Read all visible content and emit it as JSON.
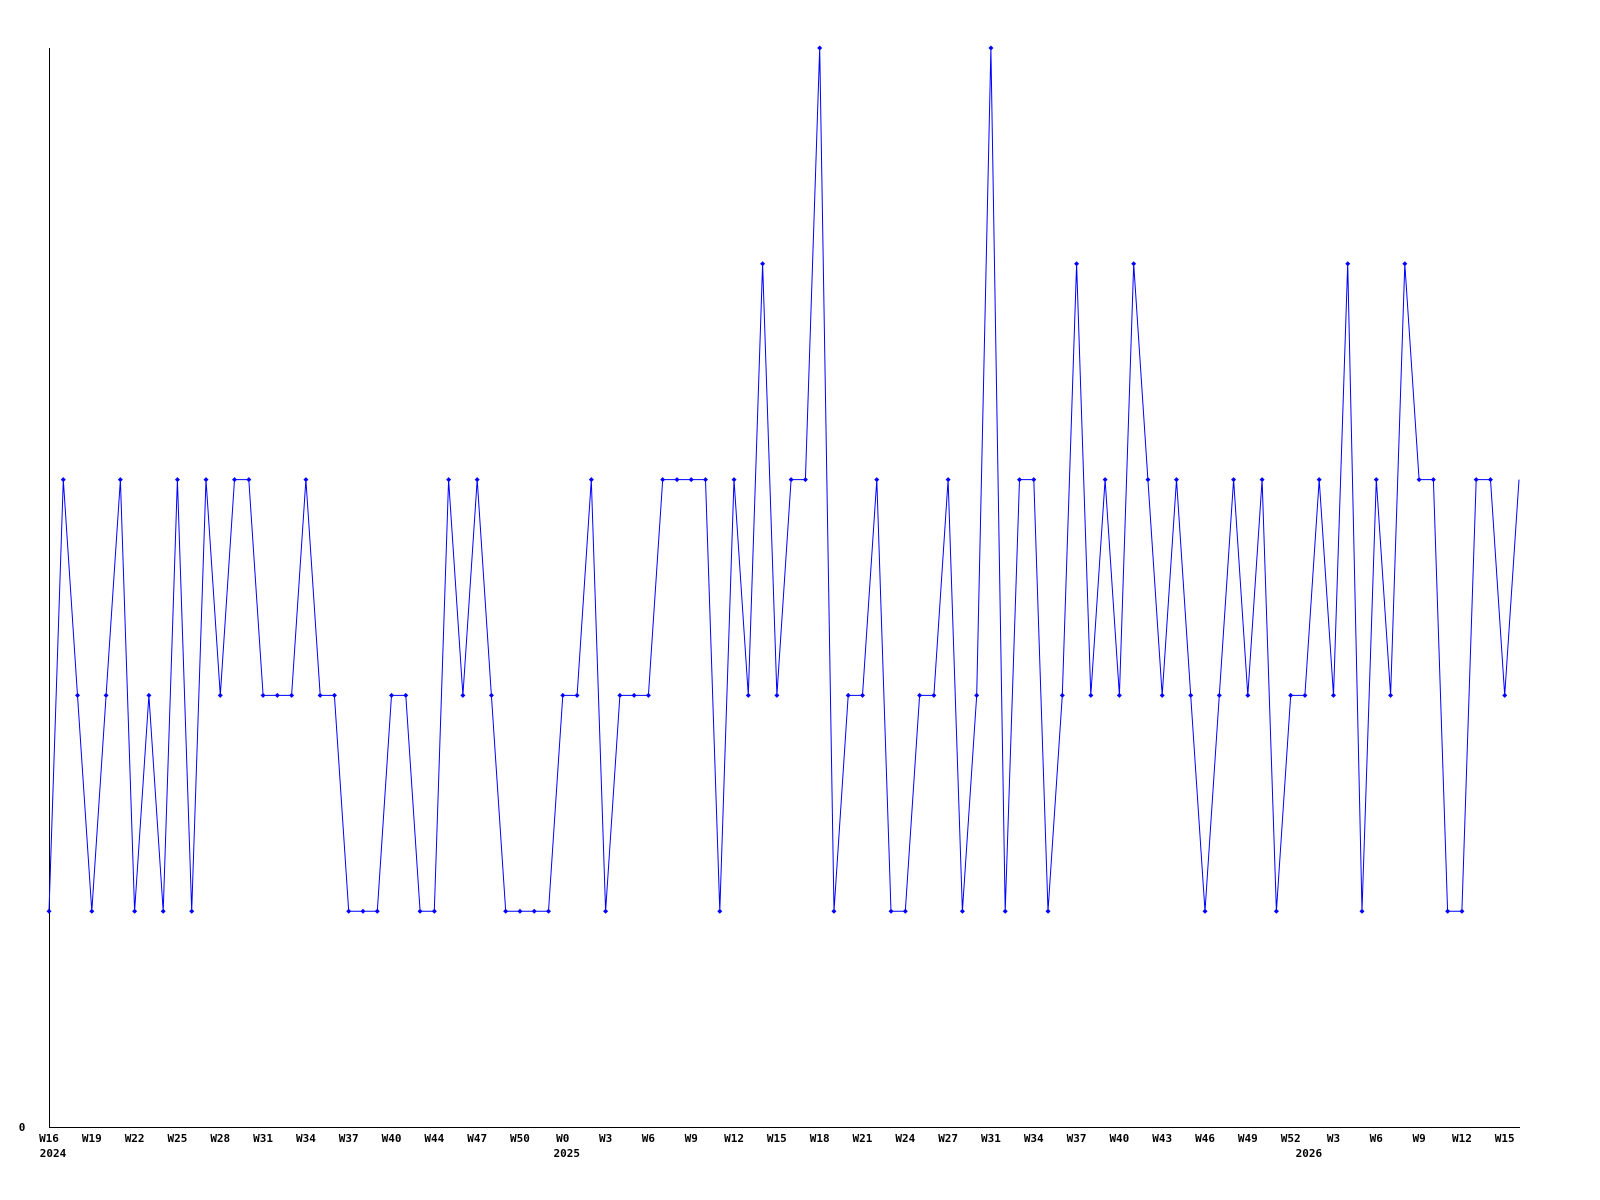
{
  "chart_data": {
    "type": "line",
    "title": "",
    "xlabel": "",
    "ylabel": "",
    "ylim": [
      0,
      5
    ],
    "y_tick_labels": [
      {
        "value": 0,
        "label": "0"
      }
    ],
    "grid": false,
    "line_color": "#0000ff",
    "axis_color": "#000000",
    "values": [
      1,
      3,
      2,
      1,
      2,
      3,
      1,
      2,
      1,
      3,
      1,
      3,
      2,
      3,
      3,
      2,
      2,
      2,
      3,
      2,
      2,
      1,
      1,
      1,
      2,
      2,
      1,
      1,
      3,
      2,
      3,
      2,
      1,
      1,
      1,
      1,
      2,
      2,
      3,
      1,
      2,
      2,
      2,
      3,
      3,
      3,
      3,
      1,
      3,
      2,
      4,
      2,
      3,
      3,
      5,
      1,
      2,
      2,
      3,
      1,
      1,
      2,
      2,
      3,
      1,
      2,
      5,
      1,
      3,
      3,
      1,
      2,
      4,
      2,
      3,
      2,
      4,
      3,
      2,
      3,
      2,
      1,
      2,
      3,
      2,
      3,
      1,
      2,
      2,
      3,
      2,
      4,
      1,
      3,
      2,
      4,
      3,
      3,
      1,
      1,
      3,
      3,
      2,
      3
    ],
    "x_ticks": [
      {
        "index": 0,
        "label": "W16"
      },
      {
        "index": 3,
        "label": "W19"
      },
      {
        "index": 6,
        "label": "W22"
      },
      {
        "index": 9,
        "label": "W25"
      },
      {
        "index": 12,
        "label": "W28"
      },
      {
        "index": 15,
        "label": "W31"
      },
      {
        "index": 18,
        "label": "W34"
      },
      {
        "index": 21,
        "label": "W37"
      },
      {
        "index": 24,
        "label": "W40"
      },
      {
        "index": 27,
        "label": "W44"
      },
      {
        "index": 30,
        "label": "W47"
      },
      {
        "index": 33,
        "label": "W50"
      },
      {
        "index": 36,
        "label": "W0"
      },
      {
        "index": 39,
        "label": "W3"
      },
      {
        "index": 42,
        "label": "W6"
      },
      {
        "index": 45,
        "label": "W9"
      },
      {
        "index": 48,
        "label": "W12"
      },
      {
        "index": 51,
        "label": "W15"
      },
      {
        "index": 54,
        "label": "W18"
      },
      {
        "index": 57,
        "label": "W21"
      },
      {
        "index": 60,
        "label": "W24"
      },
      {
        "index": 63,
        "label": "W27"
      },
      {
        "index": 66,
        "label": "W31"
      },
      {
        "index": 69,
        "label": "W34"
      },
      {
        "index": 72,
        "label": "W37"
      },
      {
        "index": 75,
        "label": "W40"
      },
      {
        "index": 78,
        "label": "W43"
      },
      {
        "index": 81,
        "label": "W46"
      },
      {
        "index": 84,
        "label": "W49"
      },
      {
        "index": 87,
        "label": "W52"
      },
      {
        "index": 90,
        "label": "W3"
      },
      {
        "index": 93,
        "label": "W6"
      },
      {
        "index": 96,
        "label": "W9"
      },
      {
        "index": 99,
        "label": "W12"
      },
      {
        "index": 102,
        "label": "W15"
      }
    ],
    "year_labels": [
      {
        "index": 0,
        "label": "2024"
      },
      {
        "index": 36,
        "label": "2025"
      },
      {
        "index": 88,
        "label": "2026"
      }
    ]
  }
}
